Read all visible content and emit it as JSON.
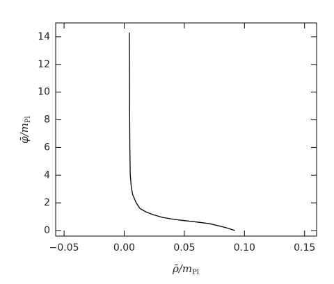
{
  "chart_data": {
    "type": "line",
    "xlabel": [
      "ρ̄/m",
      "Pl"
    ],
    "ylabel": [
      "φ̄/m",
      "Pl"
    ],
    "x": [
      0.092,
      0.085,
      0.071,
      0.06,
      0.042,
      0.032,
      0.024,
      0.018,
      0.013,
      0.01,
      0.007,
      0.0058,
      0.005,
      0.0047,
      0.0045,
      0.0044,
      0.0043
    ],
    "values": [
      0,
      0.2,
      0.5,
      0.62,
      0.8,
      0.95,
      1.15,
      1.35,
      1.6,
      2.0,
      2.6,
      3.2,
      4.1,
      6,
      9,
      12,
      14.3
    ],
    "color": "#000000",
    "xlim": [
      -0.057,
      0.16
    ],
    "ylim": [
      -0.4,
      15
    ],
    "xticks": [
      {
        "value": -0.05,
        "label": "−0.05"
      },
      {
        "value": 0,
        "label": "0.00"
      },
      0.05,
      {
        "value": 0.1,
        "label": "0.10"
      },
      0.15
    ],
    "yticks": [
      0,
      2,
      4,
      6,
      8,
      10,
      12,
      14
    ]
  }
}
